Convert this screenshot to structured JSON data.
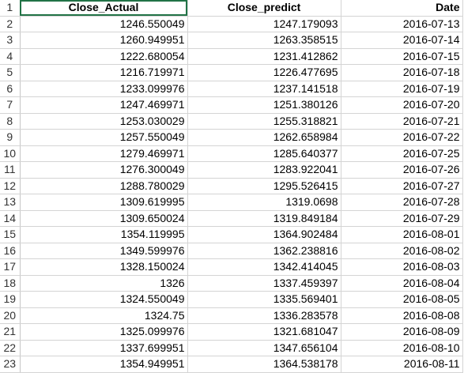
{
  "headers": {
    "row_number": "1",
    "close_actual": "Close_Actual",
    "close_predict": "Close_predict",
    "date": "Date"
  },
  "rows": [
    {
      "row": "2",
      "actual": "1246.550049",
      "predict": "1247.179093",
      "date": "2016-07-13"
    },
    {
      "row": "3",
      "actual": "1260.949951",
      "predict": "1263.358515",
      "date": "2016-07-14"
    },
    {
      "row": "4",
      "actual": "1222.680054",
      "predict": "1231.412862",
      "date": "2016-07-15"
    },
    {
      "row": "5",
      "actual": "1216.719971",
      "predict": "1226.477695",
      "date": "2016-07-18"
    },
    {
      "row": "6",
      "actual": "1233.099976",
      "predict": "1237.141518",
      "date": "2016-07-19"
    },
    {
      "row": "7",
      "actual": "1247.469971",
      "predict": "1251.380126",
      "date": "2016-07-20"
    },
    {
      "row": "8",
      "actual": "1253.030029",
      "predict": "1255.318821",
      "date": "2016-07-21"
    },
    {
      "row": "9",
      "actual": "1257.550049",
      "predict": "1262.658984",
      "date": "2016-07-22"
    },
    {
      "row": "10",
      "actual": "1279.469971",
      "predict": "1285.640377",
      "date": "2016-07-25"
    },
    {
      "row": "11",
      "actual": "1276.300049",
      "predict": "1283.922041",
      "date": "2016-07-26"
    },
    {
      "row": "12",
      "actual": "1288.780029",
      "predict": "1295.526415",
      "date": "2016-07-27"
    },
    {
      "row": "13",
      "actual": "1309.619995",
      "predict": "1319.0698",
      "date": "2016-07-28"
    },
    {
      "row": "14",
      "actual": "1309.650024",
      "predict": "1319.849184",
      "date": "2016-07-29"
    },
    {
      "row": "15",
      "actual": "1354.119995",
      "predict": "1364.902484",
      "date": "2016-08-01"
    },
    {
      "row": "16",
      "actual": "1349.599976",
      "predict": "1362.238816",
      "date": "2016-08-02"
    },
    {
      "row": "17",
      "actual": "1328.150024",
      "predict": "1342.414045",
      "date": "2016-08-03"
    },
    {
      "row": "18",
      "actual": "1326",
      "predict": "1337.459397",
      "date": "2016-08-04"
    },
    {
      "row": "19",
      "actual": "1324.550049",
      "predict": "1335.569401",
      "date": "2016-08-05"
    },
    {
      "row": "20",
      "actual": "1324.75",
      "predict": "1336.283578",
      "date": "2016-08-08"
    },
    {
      "row": "21",
      "actual": "1325.099976",
      "predict": "1321.681047",
      "date": "2016-08-09"
    },
    {
      "row": "22",
      "actual": "1337.699951",
      "predict": "1347.656104",
      "date": "2016-08-10"
    },
    {
      "row": "23",
      "actual": "1354.949951",
      "predict": "1364.538178",
      "date": "2016-08-11"
    }
  ],
  "colors": {
    "selection": "#217346",
    "grid": "#d4d4d4"
  }
}
